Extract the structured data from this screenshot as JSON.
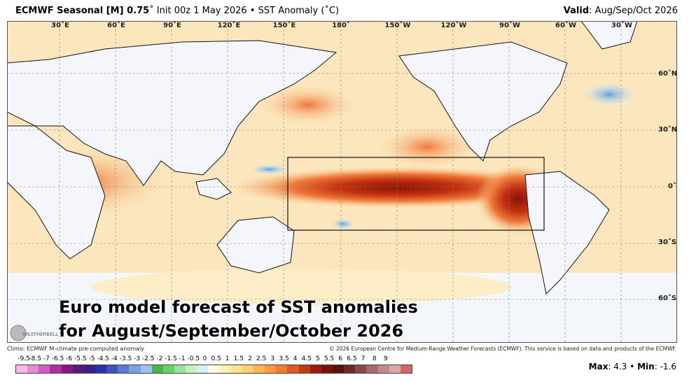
{
  "header": {
    "model_bold": "ECMWF Seasonal [M] 0.75",
    "model_rest": "˚ Init 00z 1 May 2026 • SST Anomaly (˚C)",
    "valid_label": "Valid",
    "valid_value": ": Aug/Sep/Oct 2026"
  },
  "map": {
    "lon_labels": [
      "30˚E",
      "60˚E",
      "90˚E",
      "120˚E",
      "150˚E",
      "180˚",
      "150˚W",
      "120˚W",
      "90˚W",
      "60˚W",
      "30˚W"
    ],
    "lat_labels": [
      "60˚N",
      "30˚N",
      "0˚",
      "30˚S",
      "60˚S"
    ],
    "region_box": "Niño / equatorial Pacific outlined box",
    "ocean_base_color": "#fbe3b2",
    "land_color": "#f4f6fb"
  },
  "caption": {
    "line1": "Euro model forecast of SST anomalies",
    "line2": "for August/September/October 2026"
  },
  "footer": {
    "climo": "Climo: ECMWF M-climate pre-computed anomaly",
    "copyright": "© 2026 European Centre for Medium-Range Weather Forecasts (ECMWF). This service is based on data and products of the ECMWF."
  },
  "logo": {
    "text": "WEATHERBELL"
  },
  "colorbar": {
    "ticks": [
      "-9.5",
      "-8.5",
      "-7",
      "-6.5",
      "-6",
      "-5.5",
      "-5",
      "-4.5",
      "-4",
      "-3.5",
      "-3",
      "-2.5",
      "-2",
      "-1.5",
      "-1",
      "-0.5",
      "0",
      "0.5",
      "1",
      "1.5",
      "2",
      "2.5",
      "3",
      "3.5",
      "4",
      "4.5",
      "5",
      "5.5",
      "6",
      "6.5",
      "7",
      "8",
      "9"
    ],
    "colors": [
      "#f7b7e8",
      "#e88ad6",
      "#d45bc6",
      "#b12fa5",
      "#8c1485",
      "#5a1a78",
      "#3b1f8a",
      "#2f2fa8",
      "#3f4fc4",
      "#5a78d8",
      "#7aa0e6",
      "#9cc2f0",
      "#45b845",
      "#69d06a",
      "#98e39a",
      "#c2f0c4",
      "#d7eef6",
      "#fffbe0",
      "#fff2b0",
      "#ffe38a",
      "#ffcf70",
      "#ffb455",
      "#ff9840",
      "#f57a30",
      "#e05a22",
      "#c23a14",
      "#9a1d0a",
      "#7a1208",
      "#5a1010",
      "#6b2b2b",
      "#8a4a4a",
      "#a86a6a",
      "#c48a8a",
      "#d9a7a7",
      "#d8636a"
    ]
  },
  "stats": {
    "max_label": "Max",
    "max_value": ": 4.3 • ",
    "min_label": "Min",
    "min_value": ": -1.6"
  }
}
